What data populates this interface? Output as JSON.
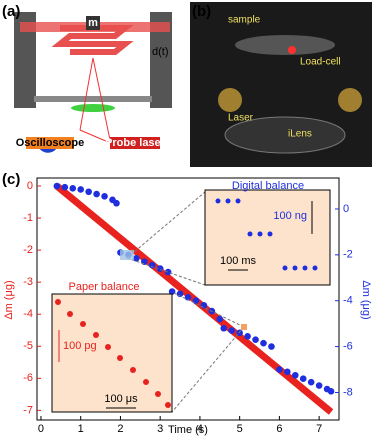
{
  "panels": {
    "a": {
      "label": "(a)",
      "mass": "m",
      "gap": "d(t)",
      "oscilloscope": "Oscilloscope",
      "probe": "Probe laser"
    },
    "b": {
      "label": "(b)",
      "sample": "sample",
      "loadcell": "Load-cell",
      "laser": "Laser",
      "lens": "iLens"
    },
    "c": {
      "label": "(c)"
    }
  },
  "chart_data": {
    "type": "scatter",
    "xlabel": "Time (s)",
    "ylabel": "Δm (μg)",
    "y2label": "Δm (μg)",
    "xlim": [
      -0.1,
      7.5
    ],
    "xticks": [
      0,
      1,
      2,
      3,
      4,
      5,
      6,
      7
    ],
    "ylim": [
      -7.3,
      0.25
    ],
    "yticks": [
      0,
      -1,
      -2,
      -3,
      -4,
      -5,
      -6,
      -7
    ],
    "y2lim": [
      -9.2,
      1.35
    ],
    "y2ticks": [
      0,
      -2,
      -4,
      -6,
      -8
    ],
    "series": [
      {
        "color": "#e8231f",
        "style": "line",
        "x": [
          0.4,
          7.3
        ],
        "values": [
          0,
          -7.05
        ]
      },
      {
        "color": "#1f2fe0",
        "style": "marker",
        "axis": "y2",
        "x": [
          0.4,
          0.6,
          0.8,
          1.0,
          1.2,
          1.4,
          1.6,
          1.8,
          1.9,
          2.0,
          2.2,
          2.4,
          2.6,
          2.8,
          3.0,
          3.2,
          3.3,
          3.5,
          3.7,
          3.9,
          4.1,
          4.3,
          4.5,
          4.6,
          4.8,
          5.0,
          5.2,
          5.4,
          5.6,
          5.8,
          6.0,
          6.2,
          6.4,
          6.6,
          6.8,
          7.0,
          7.2,
          7.3
        ],
        "values": [
          1.0,
          0.95,
          0.9,
          0.85,
          0.75,
          0.65,
          0.55,
          0.4,
          0.25,
          -1.9,
          -2.0,
          -2.15,
          -2.3,
          -2.45,
          -2.6,
          -2.75,
          -3.6,
          -3.7,
          -3.85,
          -4.0,
          -4.2,
          -4.45,
          -4.8,
          -5.2,
          -5.3,
          -5.4,
          -5.55,
          -5.7,
          -5.85,
          -6.0,
          -7.0,
          -7.1,
          -7.25,
          -7.4,
          -7.55,
          -7.7,
          -7.85,
          -7.95
        ]
      }
    ],
    "insets": [
      {
        "title": "Digital balance",
        "scale_y": "100 ng",
        "scale_x": "100 ms"
      },
      {
        "title": "Paper balance",
        "scale_y": "100 pg",
        "scale_x": "100 μs"
      }
    ]
  }
}
